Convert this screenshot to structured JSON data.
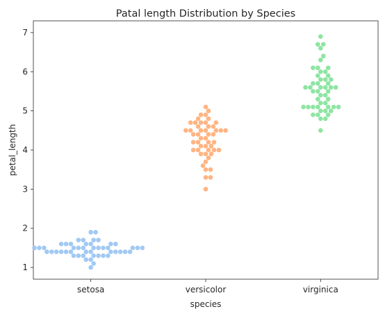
{
  "chart_data": {
    "type": "scatter",
    "subtype": "swarm",
    "title": "Patal length Distribution by Species",
    "xlabel": "species",
    "ylabel": "petal_length",
    "categories": [
      "setosa",
      "versicolor",
      "virginica"
    ],
    "ylim": [
      0.7,
      7.3
    ],
    "yticks": [
      1,
      2,
      3,
      4,
      5,
      6,
      7
    ],
    "grid": false,
    "legend": "none",
    "colors": [
      "#a1c9f4",
      "#ffb482",
      "#8de5a1"
    ],
    "series": [
      {
        "category": "setosa",
        "values": [
          1.4,
          1.4,
          1.3,
          1.5,
          1.4,
          1.7,
          1.4,
          1.5,
          1.4,
          1.5,
          1.5,
          1.6,
          1.4,
          1.1,
          1.2,
          1.5,
          1.3,
          1.4,
          1.7,
          1.5,
          1.7,
          1.5,
          1.0,
          1.7,
          1.9,
          1.6,
          1.6,
          1.5,
          1.4,
          1.6,
          1.6,
          1.5,
          1.5,
          1.4,
          1.5,
          1.2,
          1.3,
          1.4,
          1.3,
          1.5,
          1.3,
          1.3,
          1.3,
          1.6,
          1.9,
          1.4,
          1.6,
          1.4,
          1.5,
          1.4
        ]
      },
      {
        "category": "versicolor",
        "values": [
          4.7,
          4.5,
          4.9,
          4.0,
          4.6,
          4.5,
          4.7,
          3.3,
          4.6,
          3.9,
          3.5,
          4.2,
          4.0,
          4.7,
          3.6,
          4.4,
          4.5,
          4.1,
          4.5,
          3.9,
          4.8,
          4.0,
          4.9,
          4.7,
          4.3,
          4.4,
          4.8,
          5.0,
          4.5,
          3.5,
          3.8,
          3.7,
          3.9,
          5.1,
          4.5,
          4.5,
          4.7,
          4.4,
          4.1,
          4.0,
          4.4,
          4.6,
          4.0,
          3.3,
          4.2,
          4.2,
          4.2,
          4.3,
          3.0,
          4.1
        ]
      },
      {
        "category": "virginica",
        "values": [
          6.0,
          5.1,
          5.9,
          5.6,
          5.8,
          6.6,
          4.5,
          6.3,
          5.8,
          6.1,
          5.1,
          5.3,
          5.5,
          5.0,
          5.1,
          5.3,
          5.5,
          6.7,
          6.9,
          5.0,
          5.7,
          4.9,
          6.7,
          4.9,
          5.7,
          6.0,
          4.8,
          4.9,
          5.6,
          5.8,
          6.1,
          6.4,
          5.6,
          5.1,
          5.6,
          6.1,
          5.6,
          5.5,
          4.8,
          5.4,
          5.6,
          5.1,
          5.1,
          5.9,
          5.7,
          5.2,
          5.0,
          5.2,
          5.4,
          5.1
        ]
      }
    ]
  }
}
